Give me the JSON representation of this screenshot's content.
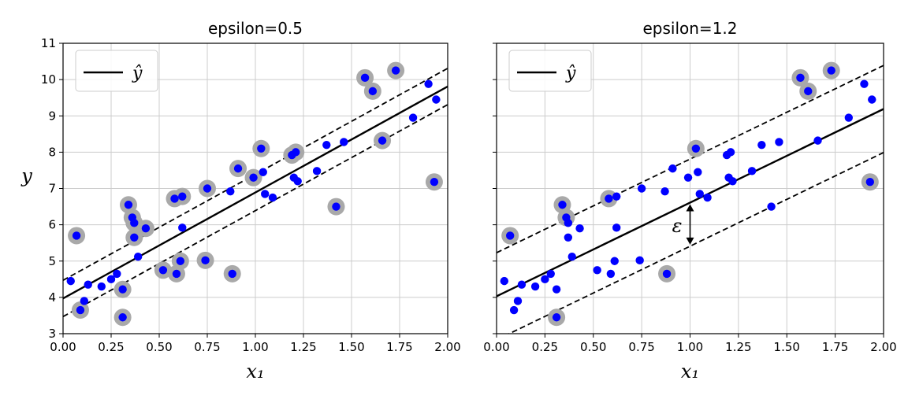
{
  "chart_data": [
    {
      "type": "scatter",
      "title": "epsilon=0.5",
      "xlabel": "x₁",
      "ylabel": "y",
      "xlim": [
        0,
        2
      ],
      "ylim": [
        3,
        11
      ],
      "xticks": [
        "0.00",
        "0.25",
        "0.50",
        "0.75",
        "1.00",
        "1.25",
        "1.50",
        "1.75",
        "2.00"
      ],
      "yticks": [
        "3",
        "4",
        "5",
        "6",
        "7",
        "8",
        "9",
        "10",
        "11"
      ],
      "grid": true,
      "legend": {
        "placement": "top-left",
        "entries": [
          "ŷ"
        ]
      },
      "prediction_line": {
        "intercept": 3.97,
        "slope": 2.92
      },
      "margin_lines": {
        "epsilon": 0.5,
        "style": "dashed"
      },
      "points": [
        {
          "x": 0.04,
          "y": 4.45,
          "sv": false
        },
        {
          "x": 0.07,
          "y": 5.7,
          "sv": true
        },
        {
          "x": 0.09,
          "y": 3.65,
          "sv": true
        },
        {
          "x": 0.11,
          "y": 3.9,
          "sv": false
        },
        {
          "x": 0.13,
          "y": 4.35,
          "sv": false
        },
        {
          "x": 0.2,
          "y": 4.3,
          "sv": false
        },
        {
          "x": 0.25,
          "y": 4.5,
          "sv": false
        },
        {
          "x": 0.28,
          "y": 4.65,
          "sv": false
        },
        {
          "x": 0.31,
          "y": 4.22,
          "sv": true
        },
        {
          "x": 0.31,
          "y": 3.45,
          "sv": true
        },
        {
          "x": 0.34,
          "y": 6.55,
          "sv": true
        },
        {
          "x": 0.36,
          "y": 6.2,
          "sv": true
        },
        {
          "x": 0.37,
          "y": 6.05,
          "sv": true
        },
        {
          "x": 0.37,
          "y": 5.65,
          "sv": true
        },
        {
          "x": 0.39,
          "y": 5.12,
          "sv": false
        },
        {
          "x": 0.43,
          "y": 5.9,
          "sv": true
        },
        {
          "x": 0.52,
          "y": 4.75,
          "sv": true
        },
        {
          "x": 0.58,
          "y": 6.72,
          "sv": true
        },
        {
          "x": 0.59,
          "y": 4.65,
          "sv": true
        },
        {
          "x": 0.61,
          "y": 5.0,
          "sv": true
        },
        {
          "x": 0.62,
          "y": 6.78,
          "sv": true
        },
        {
          "x": 0.62,
          "y": 5.92,
          "sv": false
        },
        {
          "x": 0.74,
          "y": 5.02,
          "sv": true
        },
        {
          "x": 0.75,
          "y": 7.0,
          "sv": true
        },
        {
          "x": 0.87,
          "y": 6.92,
          "sv": false
        },
        {
          "x": 0.88,
          "y": 4.65,
          "sv": true
        },
        {
          "x": 0.91,
          "y": 7.55,
          "sv": true
        },
        {
          "x": 0.99,
          "y": 7.3,
          "sv": true
        },
        {
          "x": 1.03,
          "y": 8.1,
          "sv": true
        },
        {
          "x": 1.05,
          "y": 6.85,
          "sv": false
        },
        {
          "x": 1.04,
          "y": 7.45,
          "sv": false
        },
        {
          "x": 1.09,
          "y": 6.75,
          "sv": false
        },
        {
          "x": 1.19,
          "y": 7.92,
          "sv": true
        },
        {
          "x": 1.21,
          "y": 8.0,
          "sv": true
        },
        {
          "x": 1.2,
          "y": 7.3,
          "sv": false
        },
        {
          "x": 1.22,
          "y": 7.2,
          "sv": false
        },
        {
          "x": 1.32,
          "y": 7.48,
          "sv": false
        },
        {
          "x": 1.37,
          "y": 8.2,
          "sv": false
        },
        {
          "x": 1.42,
          "y": 6.5,
          "sv": true
        },
        {
          "x": 1.46,
          "y": 8.28,
          "sv": false
        },
        {
          "x": 1.57,
          "y": 10.05,
          "sv": true
        },
        {
          "x": 1.61,
          "y": 9.68,
          "sv": true
        },
        {
          "x": 1.66,
          "y": 8.32,
          "sv": true
        },
        {
          "x": 1.73,
          "y": 10.25,
          "sv": true
        },
        {
          "x": 1.82,
          "y": 8.95,
          "sv": false
        },
        {
          "x": 1.9,
          "y": 9.88,
          "sv": false
        },
        {
          "x": 1.93,
          "y": 7.18,
          "sv": true
        },
        {
          "x": 1.94,
          "y": 9.45,
          "sv": false
        }
      ]
    },
    {
      "type": "scatter",
      "title": "epsilon=1.2",
      "xlabel": "x₁",
      "ylabel": "",
      "xlim": [
        0,
        2
      ],
      "ylim": [
        3,
        11
      ],
      "xticks": [
        "0.00",
        "0.25",
        "0.50",
        "0.75",
        "1.00",
        "1.25",
        "1.50",
        "1.75",
        "2.00"
      ],
      "yticks": [],
      "grid": true,
      "legend": {
        "placement": "top-left",
        "entries": [
          "ŷ"
        ]
      },
      "prediction_line": {
        "intercept": 4.03,
        "slope": 2.58
      },
      "margin_lines": {
        "epsilon": 1.2,
        "style": "dashed"
      },
      "annotation": {
        "text": "ε",
        "x": 1.0
      },
      "points": [
        {
          "x": 0.04,
          "y": 4.45,
          "sv": false
        },
        {
          "x": 0.07,
          "y": 5.7,
          "sv": true
        },
        {
          "x": 0.09,
          "y": 3.65,
          "sv": false
        },
        {
          "x": 0.11,
          "y": 3.9,
          "sv": false
        },
        {
          "x": 0.13,
          "y": 4.35,
          "sv": false
        },
        {
          "x": 0.2,
          "y": 4.3,
          "sv": false
        },
        {
          "x": 0.25,
          "y": 4.5,
          "sv": false
        },
        {
          "x": 0.28,
          "y": 4.65,
          "sv": false
        },
        {
          "x": 0.31,
          "y": 4.22,
          "sv": false
        },
        {
          "x": 0.31,
          "y": 3.45,
          "sv": true
        },
        {
          "x": 0.34,
          "y": 6.55,
          "sv": true
        },
        {
          "x": 0.36,
          "y": 6.2,
          "sv": true
        },
        {
          "x": 0.37,
          "y": 6.05,
          "sv": false
        },
        {
          "x": 0.37,
          "y": 5.65,
          "sv": false
        },
        {
          "x": 0.39,
          "y": 5.12,
          "sv": false
        },
        {
          "x": 0.43,
          "y": 5.9,
          "sv": false
        },
        {
          "x": 0.52,
          "y": 4.75,
          "sv": false
        },
        {
          "x": 0.58,
          "y": 6.72,
          "sv": true
        },
        {
          "x": 0.59,
          "y": 4.65,
          "sv": false
        },
        {
          "x": 0.61,
          "y": 5.0,
          "sv": false
        },
        {
          "x": 0.62,
          "y": 6.78,
          "sv": false
        },
        {
          "x": 0.62,
          "y": 5.92,
          "sv": false
        },
        {
          "x": 0.74,
          "y": 5.02,
          "sv": false
        },
        {
          "x": 0.75,
          "y": 7.0,
          "sv": false
        },
        {
          "x": 0.87,
          "y": 6.92,
          "sv": false
        },
        {
          "x": 0.88,
          "y": 4.65,
          "sv": true
        },
        {
          "x": 0.91,
          "y": 7.55,
          "sv": false
        },
        {
          "x": 0.99,
          "y": 7.3,
          "sv": false
        },
        {
          "x": 1.03,
          "y": 8.1,
          "sv": true
        },
        {
          "x": 1.05,
          "y": 6.85,
          "sv": false
        },
        {
          "x": 1.04,
          "y": 7.45,
          "sv": false
        },
        {
          "x": 1.09,
          "y": 6.75,
          "sv": false
        },
        {
          "x": 1.19,
          "y": 7.92,
          "sv": false
        },
        {
          "x": 1.21,
          "y": 8.0,
          "sv": false
        },
        {
          "x": 1.2,
          "y": 7.3,
          "sv": false
        },
        {
          "x": 1.22,
          "y": 7.2,
          "sv": false
        },
        {
          "x": 1.32,
          "y": 7.48,
          "sv": false
        },
        {
          "x": 1.37,
          "y": 8.2,
          "sv": false
        },
        {
          "x": 1.42,
          "y": 6.5,
          "sv": false
        },
        {
          "x": 1.46,
          "y": 8.28,
          "sv": false
        },
        {
          "x": 1.57,
          "y": 10.05,
          "sv": true
        },
        {
          "x": 1.61,
          "y": 9.68,
          "sv": true
        },
        {
          "x": 1.66,
          "y": 8.32,
          "sv": false
        },
        {
          "x": 1.73,
          "y": 10.25,
          "sv": true
        },
        {
          "x": 1.82,
          "y": 8.95,
          "sv": false
        },
        {
          "x": 1.9,
          "y": 9.88,
          "sv": false
        },
        {
          "x": 1.93,
          "y": 7.18,
          "sv": true
        },
        {
          "x": 1.94,
          "y": 9.45,
          "sv": false
        }
      ]
    }
  ],
  "colors": {
    "points": "#0000ff",
    "support_vector_ring": "#a9a9a9",
    "line": "#000000",
    "grid": "#cccccc"
  }
}
